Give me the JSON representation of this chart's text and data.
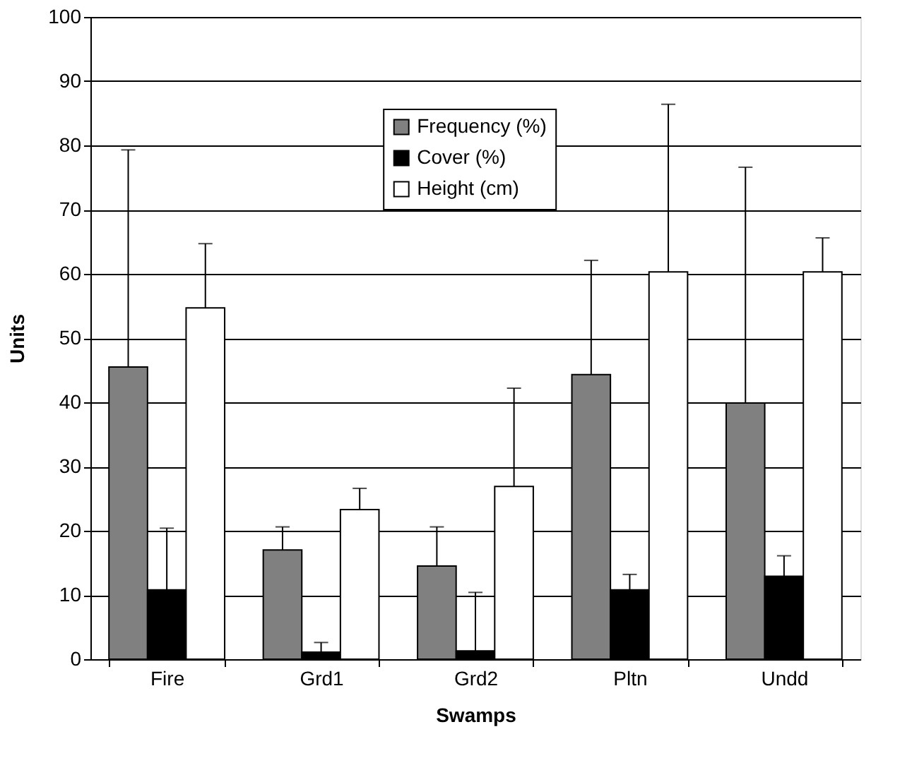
{
  "chart_data": {
    "type": "bar",
    "xlabel": "Swamps",
    "ylabel": "Units",
    "categories": [
      "Fire",
      "Grd1",
      "Grd2",
      "Pltn",
      "Undd"
    ],
    "series": [
      {
        "name": "Frequency (%)",
        "color": "#808080",
        "values": [
          45.5,
          17.0,
          14.5,
          44.3,
          39.9
        ],
        "errors": [
          [
            45.5,
            79.3
          ],
          [
            17.0,
            20.6
          ],
          [
            14.5,
            20.6
          ],
          [
            44.3,
            62.1
          ],
          [
            39.9,
            76.6
          ]
        ]
      },
      {
        "name": "Cover (%)",
        "color": "#000000",
        "values": [
          10.8,
          1.1,
          1.3,
          10.8,
          12.9
        ],
        "errors": [
          [
            10.8,
            20.4
          ],
          [
            1.1,
            2.6
          ],
          [
            1.3,
            10.4
          ],
          [
            10.8,
            13.2
          ],
          [
            12.9,
            16.1
          ]
        ]
      },
      {
        "name": "Height (cm)",
        "color": "#ffffff",
        "values": [
          54.7,
          23.3,
          26.9,
          60.3,
          60.3
        ],
        "errors": [
          [
            54.7,
            64.7
          ],
          [
            23.3,
            26.6
          ],
          [
            26.9,
            42.2
          ],
          [
            60.3,
            86.4
          ],
          [
            60.3,
            65.6
          ]
        ]
      }
    ],
    "ylim": [
      0,
      100
    ],
    "yticks": [
      0,
      10,
      20,
      30,
      40,
      50,
      60,
      70,
      80,
      90,
      100
    ],
    "grid": "y",
    "legend": "top"
  }
}
